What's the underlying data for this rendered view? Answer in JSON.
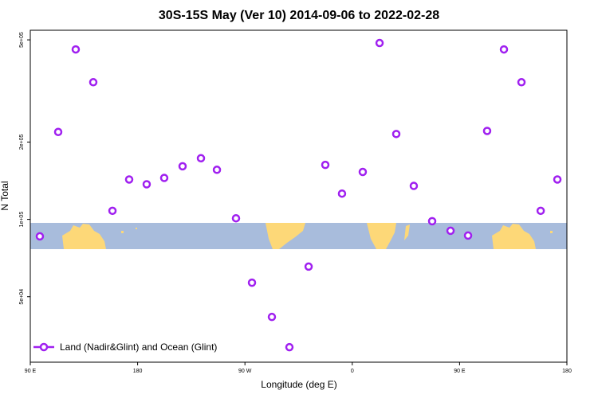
{
  "chart_data": {
    "type": "scatter",
    "title": "30S-15S May (Ver 10)   2014-09-06 to 2022-02-28",
    "x_label": "Longitude (deg E)",
    "y_label": "N Total",
    "log_y": true,
    "series": [
      {
        "name": "Land (Nadir&Glint) and Ocean (Glint)",
        "color": "#a020f0",
        "x": [
          98.0,
          113.4,
          128.1,
          142.8,
          158.9,
          172.9,
          187.6,
          202.3,
          217.7,
          233.1,
          246.5,
          262.5,
          275.9,
          292.6,
          307.3,
          323.4,
          337.4,
          351.4,
          368.8,
          382.9,
          396.9,
          411.6,
          427.0,
          442.4,
          457.1,
          473.1,
          487.2,
          501.9,
          518.0,
          532.0
        ],
        "values": [
          85900,
          219000,
          459000,
          342000,
          108000,
          143000,
          137000,
          145000,
          161000,
          173000,
          156000,
          101000,
          56700,
          41700,
          31800,
          65500,
          163000,
          126000,
          153000,
          486000,
          215000,
          135000,
          98400,
          90300,
          86500,
          221000,
          459000,
          342000,
          108000,
          143000
        ]
      }
    ],
    "xlim": [
      90,
      540
    ],
    "xticks": [
      {
        "value": 90,
        "label": "90 E"
      },
      {
        "value": 180,
        "label": "180"
      },
      {
        "value": 270,
        "label": "90 W"
      },
      {
        "value": 360,
        "label": "0"
      },
      {
        "value": 450,
        "label": "90 E"
      },
      {
        "value": 540,
        "label": "180"
      }
    ],
    "ylim": [
      27800,
      545000
    ],
    "yticks": [
      {
        "value": 50000,
        "label": "5e+04"
      },
      {
        "value": 100000,
        "label": "1e+05"
      },
      {
        "value": 200000,
        "label": "2e+05"
      },
      {
        "value": 500000,
        "label": "5e+05"
      }
    ],
    "legend": "bottom-left"
  }
}
